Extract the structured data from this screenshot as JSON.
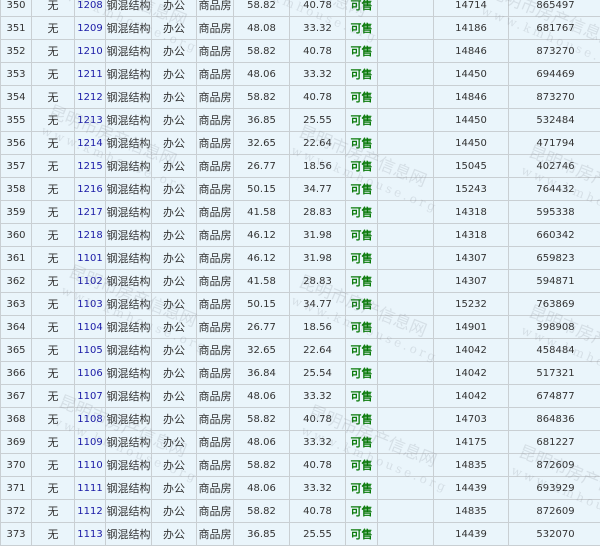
{
  "rows": [
    [
      "350",
      "无",
      "1208",
      "钢混结构",
      "办公",
      "商品房",
      "58.82",
      "40.78",
      "可售",
      "",
      "14714",
      "865497"
    ],
    [
      "351",
      "无",
      "1209",
      "钢混结构",
      "办公",
      "商品房",
      "48.08",
      "33.32",
      "可售",
      "",
      "14186",
      "681767"
    ],
    [
      "352",
      "无",
      "1210",
      "钢混结构",
      "办公",
      "商品房",
      "58.82",
      "40.78",
      "可售",
      "",
      "14846",
      "873270"
    ],
    [
      "353",
      "无",
      "1211",
      "钢混结构",
      "办公",
      "商品房",
      "48.06",
      "33.32",
      "可售",
      "",
      "14450",
      "694469"
    ],
    [
      "354",
      "无",
      "1212",
      "钢混结构",
      "办公",
      "商品房",
      "58.82",
      "40.78",
      "可售",
      "",
      "14846",
      "873270"
    ],
    [
      "355",
      "无",
      "1213",
      "钢混结构",
      "办公",
      "商品房",
      "36.85",
      "25.55",
      "可售",
      "",
      "14450",
      "532484"
    ],
    [
      "356",
      "无",
      "1214",
      "钢混结构",
      "办公",
      "商品房",
      "32.65",
      "22.64",
      "可售",
      "",
      "14450",
      "471794"
    ],
    [
      "357",
      "无",
      "1215",
      "钢混结构",
      "办公",
      "商品房",
      "26.77",
      "18.56",
      "可售",
      "",
      "15045",
      "402746"
    ],
    [
      "358",
      "无",
      "1216",
      "钢混结构",
      "办公",
      "商品房",
      "50.15",
      "34.77",
      "可售",
      "",
      "15243",
      "764432"
    ],
    [
      "359",
      "无",
      "1217",
      "钢混结构",
      "办公",
      "商品房",
      "41.58",
      "28.83",
      "可售",
      "",
      "14318",
      "595338"
    ],
    [
      "360",
      "无",
      "1218",
      "钢混结构",
      "办公",
      "商品房",
      "46.12",
      "31.98",
      "可售",
      "",
      "14318",
      "660342"
    ],
    [
      "361",
      "无",
      "1101",
      "钢混结构",
      "办公",
      "商品房",
      "46.12",
      "31.98",
      "可售",
      "",
      "14307",
      "659823"
    ],
    [
      "362",
      "无",
      "1102",
      "钢混结构",
      "办公",
      "商品房",
      "41.58",
      "28.83",
      "可售",
      "",
      "14307",
      "594871"
    ],
    [
      "363",
      "无",
      "1103",
      "钢混结构",
      "办公",
      "商品房",
      "50.15",
      "34.77",
      "可售",
      "",
      "15232",
      "763869"
    ],
    [
      "364",
      "无",
      "1104",
      "钢混结构",
      "办公",
      "商品房",
      "26.77",
      "18.56",
      "可售",
      "",
      "14901",
      "398908"
    ],
    [
      "365",
      "无",
      "1105",
      "钢混结构",
      "办公",
      "商品房",
      "32.65",
      "22.64",
      "可售",
      "",
      "14042",
      "458484"
    ],
    [
      "366",
      "无",
      "1106",
      "钢混结构",
      "办公",
      "商品房",
      "36.84",
      "25.54",
      "可售",
      "",
      "14042",
      "517321"
    ],
    [
      "367",
      "无",
      "1107",
      "钢混结构",
      "办公",
      "商品房",
      "48.06",
      "33.32",
      "可售",
      "",
      "14042",
      "674877"
    ],
    [
      "368",
      "无",
      "1108",
      "钢混结构",
      "办公",
      "商品房",
      "58.82",
      "40.78",
      "可售",
      "",
      "14703",
      "864836"
    ],
    [
      "369",
      "无",
      "1109",
      "钢混结构",
      "办公",
      "商品房",
      "48.06",
      "33.32",
      "可售",
      "",
      "14175",
      "681227"
    ],
    [
      "370",
      "无",
      "1110",
      "钢混结构",
      "办公",
      "商品房",
      "58.82",
      "40.78",
      "可售",
      "",
      "14835",
      "872609"
    ],
    [
      "371",
      "无",
      "1111",
      "钢混结构",
      "办公",
      "商品房",
      "48.06",
      "33.32",
      "可售",
      "",
      "14439",
      "693929"
    ],
    [
      "372",
      "无",
      "1112",
      "钢混结构",
      "办公",
      "商品房",
      "58.82",
      "40.78",
      "可售",
      "",
      "14835",
      "872609"
    ],
    [
      "373",
      "无",
      "1113",
      "钢混结构",
      "办公",
      "商品房",
      "36.85",
      "25.55",
      "可售",
      "",
      "14439",
      "532070"
    ]
  ],
  "watermark": {
    "name": "昆明市房产信息网",
    "url": "www.kmhouse.org"
  },
  "colors": {
    "background": "#eaf5fb",
    "room_link": "#1a1aa6",
    "status": "#0a7a0a",
    "border": "#c9cfd3"
  }
}
